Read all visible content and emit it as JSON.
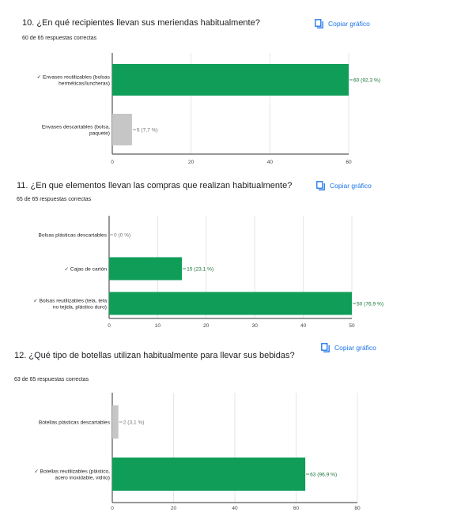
{
  "copy_label": "Copiar gráfico",
  "questions": [
    {
      "title": "10.  ¿En qué recipientes llevan sus meriendas habitualmente?",
      "subtitle": "60 de 65 respuestas correctas"
    },
    {
      "title": "11. ¿En que elementos llevan las compras que realizan habitualmente?",
      "subtitle": "65 de 65 respuestas correctas"
    },
    {
      "title": "12. ¿Qué tipo de botellas utilizan habitualmente para llevar sus bebidas?",
      "subtitle": "63 de 65 respuestas correctas"
    }
  ],
  "colors": {
    "correct": "#0f9d58",
    "incorrect": "#c6c6c6",
    "grid": "#e6e6e6",
    "axis": "#333333",
    "label_correct": "#137333",
    "label_other": "#757575"
  },
  "chart_data": [
    {
      "type": "bar",
      "orientation": "horizontal",
      "categories": [
        [
          "✓ Envases reutilizables (bolsas",
          "herméticas/luncheras)"
        ],
        [
          "Envases descartables (bolsa,",
          "paquete)"
        ]
      ],
      "values": [
        60,
        5
      ],
      "data_labels": [
        "60 (92,3 %)",
        "5 (7,7 %)"
      ],
      "correct": [
        true,
        false
      ],
      "xlim": [
        0,
        60
      ],
      "xticks": [
        0,
        20,
        40,
        60
      ],
      "grid": true
    },
    {
      "type": "bar",
      "orientation": "horizontal",
      "categories": [
        [
          "Bolsas plásticas descartables"
        ],
        [
          "✓ Cajas de cartón"
        ],
        [
          "✓ Bolsas reutilizables (tela, tela",
          "no tejida, plástico duro)"
        ]
      ],
      "values": [
        0,
        15,
        50
      ],
      "data_labels": [
        "0 (0 %)",
        "15 (23,1 %)",
        "50 (76,9 %)"
      ],
      "correct": [
        false,
        true,
        true
      ],
      "xlim": [
        0,
        50
      ],
      "xticks": [
        0,
        10,
        20,
        30,
        40,
        50
      ],
      "grid": true
    },
    {
      "type": "bar",
      "orientation": "horizontal",
      "categories": [
        [
          "Botellas plásticas descartables"
        ],
        [
          "✓ Botellas reutilizables (plástico,",
          "acero inoxidable, vidrio)"
        ]
      ],
      "values": [
        2,
        63
      ],
      "data_labels": [
        "2 (3,1 %)",
        "63 (96,9 %)"
      ],
      "correct": [
        false,
        true
      ],
      "xlim": [
        0,
        80
      ],
      "xticks": [
        0,
        20,
        40,
        60,
        80
      ],
      "grid": true
    }
  ]
}
